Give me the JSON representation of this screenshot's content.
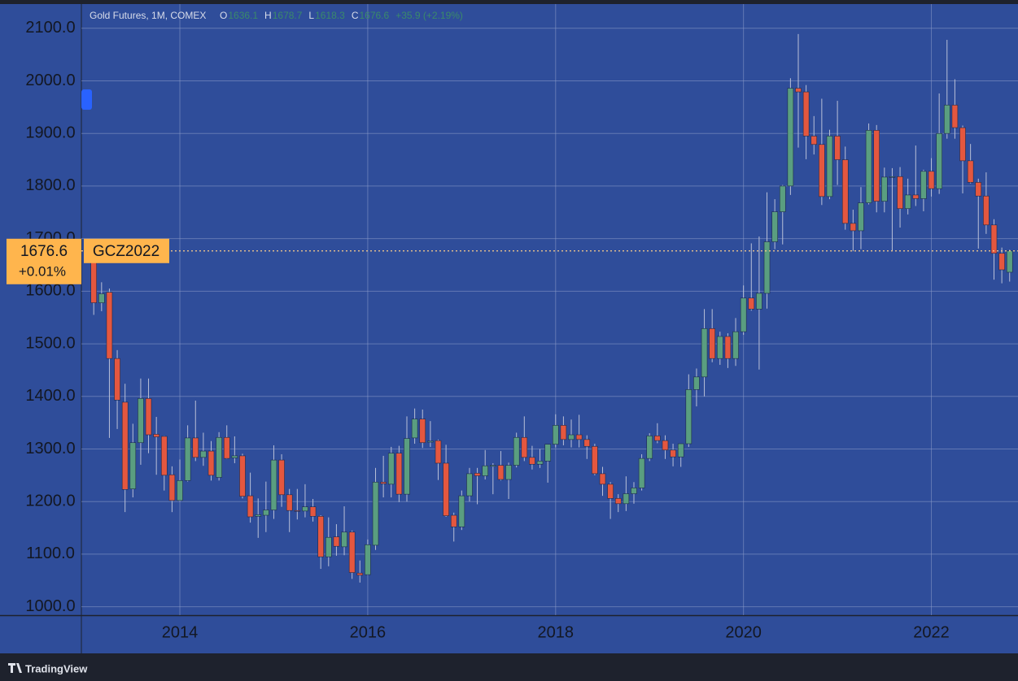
{
  "chart_data": {
    "type": "candlestick",
    "title": "Gold Futures, 1M, COMEX",
    "ohlc_prefixes": [
      "O",
      "H",
      "L",
      "C"
    ],
    "change_label": "+35.9 (+2.19%)",
    "price_change_label": "+0.01%",
    "contract": "GCZ2022",
    "up_color": "#5a9e80",
    "down_color": "#e4573f",
    "wick_color": "#b9c0d8",
    "background": "#2f4d9a",
    "grid": true,
    "ylim": [
      984,
      2146
    ],
    "yticks": [
      {
        "value": 1000,
        "label": "1000.0"
      },
      {
        "value": 1100,
        "label": "1100.0"
      },
      {
        "value": 1200,
        "label": "1200.0"
      },
      {
        "value": 1300,
        "label": "1300.0"
      },
      {
        "value": 1400,
        "label": "1400.0"
      },
      {
        "value": 1500,
        "label": "1500.0"
      },
      {
        "value": 1600,
        "label": "1600.0"
      },
      {
        "value": 1700,
        "label": "1700.0"
      },
      {
        "value": 1800,
        "label": "1800.0"
      },
      {
        "value": 1900,
        "label": "1900.0"
      },
      {
        "value": 2000,
        "label": "2000.0"
      },
      {
        "value": 2100,
        "label": "2100.0"
      }
    ],
    "categories": [
      null,
      null,
      null,
      null,
      null,
      null,
      null,
      null,
      null,
      null,
      null,
      "2014",
      null,
      null,
      null,
      null,
      null,
      null,
      null,
      null,
      null,
      null,
      null,
      null,
      null,
      null,
      null,
      null,
      null,
      null,
      null,
      null,
      null,
      null,
      null,
      "2016",
      null,
      null,
      null,
      null,
      null,
      null,
      null,
      null,
      null,
      null,
      null,
      null,
      null,
      null,
      null,
      null,
      null,
      null,
      null,
      null,
      null,
      null,
      null,
      "2018",
      null,
      null,
      null,
      null,
      null,
      null,
      null,
      null,
      null,
      null,
      null,
      null,
      null,
      null,
      null,
      null,
      null,
      null,
      null,
      null,
      null,
      null,
      null,
      "2020",
      null,
      null,
      null,
      null,
      null,
      null,
      null,
      null,
      null,
      null,
      null,
      null,
      null,
      null,
      null,
      null,
      null,
      null,
      null,
      null,
      null,
      null,
      null,
      "2022",
      null,
      null,
      null,
      null,
      null,
      null,
      null,
      null,
      null,
      null
    ],
    "open": [
      1664,
      1578,
      1598,
      1472,
      1389,
      1224,
      1312,
      1396,
      1328,
      1324,
      1251,
      1202,
      1240,
      1321,
      1284,
      1296,
      1246,
      1322,
      1283,
      1287,
      1211,
      1172,
      1174,
      1184,
      1279,
      1213,
      1183,
      1182,
      1190,
      1172,
      1095,
      1133,
      1114,
      1142,
      1064,
      1061,
      1117,
      1237,
      1233,
      1292,
      1214,
      1321,
      1357,
      1313,
      1316,
      1273,
      1174,
      1152,
      1211,
      1254,
      1249,
      1267,
      1269,
      1242,
      1269,
      1322,
      1284,
      1271,
      1277,
      1309,
      1345,
      1318,
      1327,
      1318,
      1305,
      1253,
      1233,
      1206,
      1196,
      1215,
      1226,
      1282,
      1325,
      1316,
      1298,
      1285,
      1310,
      1413,
      1437,
      1529,
      1472,
      1514,
      1472,
      1523,
      1587,
      1566,
      1596,
      1694,
      1751,
      1800,
      1986,
      1979,
      1895,
      1879,
      1780,
      1895,
      1850,
      1729,
      1715,
      1768,
      1906,
      1771,
      1817,
      1818,
      1757,
      1783,
      1776,
      1828,
      1795,
      1900,
      1954,
      1911,
      1848,
      1807,
      1781,
      1726,
      1672,
      1636.1
    ],
    "high": [
      1684,
      1617,
      1605,
      1488,
      1424,
      1348,
      1434,
      1434,
      1361,
      1325,
      1267,
      1280,
      1345,
      1392,
      1331,
      1315,
      1332,
      1345,
      1324,
      1291,
      1255,
      1206,
      1238,
      1307,
      1290,
      1224,
      1224,
      1233,
      1205,
      1174,
      1170,
      1157,
      1191,
      1145,
      1088,
      1128,
      1264,
      1287,
      1304,
      1306,
      1362,
      1377,
      1375,
      1353,
      1318,
      1308,
      1179,
      1221,
      1264,
      1264,
      1298,
      1273,
      1296,
      1274,
      1331,
      1362,
      1306,
      1300,
      1309,
      1366,
      1362,
      1356,
      1365,
      1326,
      1310,
      1266,
      1237,
      1214,
      1248,
      1237,
      1290,
      1330,
      1349,
      1326,
      1310,
      1310,
      1442,
      1453,
      1566,
      1566,
      1523,
      1520,
      1549,
      1611,
      1691,
      1704,
      1788,
      1775,
      1802,
      2005,
      2089,
      1992,
      1933,
      1966,
      1907,
      1962,
      1875,
      1755,
      1798,
      1919,
      1916,
      1835,
      1834,
      1836,
      1814,
      1877,
      1831,
      1853,
      1976,
      2078,
      2003,
      1915,
      1880,
      1814,
      1826,
      1737,
      1683,
      1678.7
    ],
    "low": [
      1555,
      1562,
      1321,
      1338,
      1180,
      1208,
      1270,
      1292,
      1251,
      1221,
      1180,
      1200,
      1238,
      1277,
      1268,
      1240,
      1240,
      1281,
      1273,
      1206,
      1160,
      1131,
      1142,
      1167,
      1190,
      1142,
      1166,
      1170,
      1162,
      1072,
      1077,
      1097,
      1098,
      1053,
      1046,
      1060,
      1108,
      1208,
      1208,
      1199,
      1200,
      1310,
      1302,
      1304,
      1241,
      1171,
      1124,
      1146,
      1200,
      1195,
      1242,
      1214,
      1240,
      1205,
      1265,
      1277,
      1261,
      1264,
      1236,
      1303,
      1307,
      1303,
      1303,
      1281,
      1250,
      1211,
      1167,
      1180,
      1182,
      1196,
      1221,
      1277,
      1311,
      1281,
      1267,
      1266,
      1304,
      1381,
      1400,
      1465,
      1460,
      1454,
      1458,
      1517,
      1563,
      1451,
      1567,
      1680,
      1689,
      1783,
      1873,
      1851,
      1860,
      1764,
      1775,
      1802,
      1717,
      1676,
      1680,
      1765,
      1750,
      1750,
      1677,
      1721,
      1746,
      1762,
      1752,
      1780,
      1785,
      1890,
      1890,
      1786,
      1805,
      1681,
      1709,
      1622,
      1615,
      1618.3
    ],
    "close": [
      1578,
      1595,
      1472,
      1393,
      1223,
      1312,
      1396,
      1327,
      1323,
      1250,
      1202,
      1240,
      1321,
      1284,
      1296,
      1250,
      1322,
      1282,
      1287,
      1210,
      1171,
      1175,
      1184,
      1279,
      1213,
      1183,
      1182,
      1190,
      1172,
      1095,
      1132,
      1115,
      1142,
      1065,
      1060,
      1118,
      1237,
      1234,
      1292,
      1214,
      1320,
      1357,
      1312,
      1315,
      1273,
      1173,
      1152,
      1211,
      1253,
      1249,
      1268,
      1269,
      1242,
      1269,
      1322,
      1284,
      1271,
      1277,
      1309,
      1345,
      1318,
      1327,
      1318,
      1305,
      1253,
      1233,
      1206,
      1196,
      1215,
      1226,
      1282,
      1325,
      1316,
      1298,
      1285,
      1310,
      1413,
      1437,
      1529,
      1472,
      1514,
      1472,
      1523,
      1587,
      1566,
      1596,
      1694,
      1751,
      1800,
      1986,
      1979,
      1895,
      1879,
      1780,
      1895,
      1850,
      1729,
      1715,
      1768,
      1906,
      1771,
      1817,
      1818,
      1757,
      1783,
      1776,
      1828,
      1795,
      1900,
      1954,
      1911,
      1848,
      1807,
      1781,
      1726,
      1672,
      1640.7,
      1676.6
    ]
  },
  "footer": {
    "brand": "TradingView"
  }
}
